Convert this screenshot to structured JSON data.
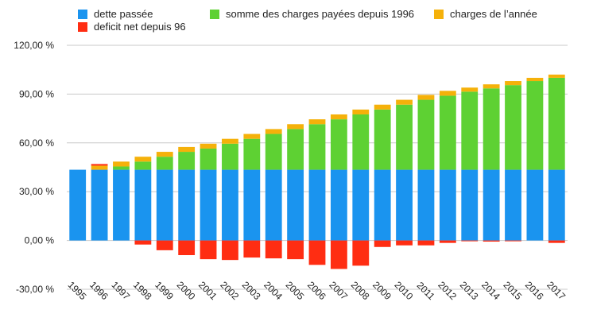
{
  "legend": [
    {
      "key": "dette",
      "label": "dette passée",
      "color": "#1a94ef"
    },
    {
      "key": "somme",
      "label": "somme des charges  payées depuis 1996",
      "color": "#5ed133"
    },
    {
      "key": "charges",
      "label": "charges de l’année",
      "color": "#f5b10a"
    },
    {
      "key": "deficit",
      "label": "deficit net depuis 96",
      "color": "#ff2d12"
    }
  ],
  "chart_data": {
    "type": "bar",
    "stacked": true,
    "categories": [
      "1995",
      "1996",
      "1997",
      "1998",
      "1999",
      "2000",
      "2001",
      "2002",
      "2003",
      "2004",
      "2005",
      "2006",
      "2007",
      "2008",
      "2009",
      "2010",
      "2011",
      "2012",
      "2013",
      "2014",
      "2015",
      "2016",
      "2017"
    ],
    "series": [
      {
        "name": "dette passée",
        "values": [
          43.5,
          43.5,
          43.5,
          43.5,
          43.5,
          43.5,
          43.5,
          43.5,
          43.5,
          43.5,
          43.5,
          43.5,
          43.5,
          43.5,
          43.5,
          43.5,
          43.5,
          43.5,
          43.5,
          43.5,
          43.5,
          43.5,
          43.5
        ]
      },
      {
        "name": "somme des charges  payées depuis 1996",
        "values": [
          0,
          0,
          2,
          5,
          8,
          11,
          13,
          16,
          19,
          22,
          25,
          28,
          31,
          34,
          37,
          40,
          43,
          45.5,
          48,
          50,
          52,
          54.5,
          56.5
        ]
      },
      {
        "name": "charges de l’année",
        "values": [
          0,
          2.5,
          3,
          3,
          3,
          3,
          3,
          3,
          3,
          3,
          3,
          3,
          3,
          3,
          3,
          3,
          3,
          3,
          2.5,
          2.5,
          2.5,
          2,
          2
        ]
      },
      {
        "name": "deficit net depuis 96",
        "values": [
          0,
          1,
          0,
          -2.5,
          -6,
          -9,
          -11.5,
          -12,
          -10.5,
          -11,
          -11.5,
          -15,
          -17.5,
          -15.5,
          -4,
          -3,
          -3,
          -1.5,
          -0.5,
          -0.7,
          -0.5,
          0,
          -1.5
        ]
      }
    ],
    "yticks": [
      -30,
      0,
      30,
      60,
      90,
      120
    ],
    "ytick_labels": [
      "-30,00 %",
      "0,00 %",
      "30,00 %",
      "60,00 %",
      "90,00 %",
      "120,00 %"
    ],
    "ylim": [
      -30,
      120
    ],
    "grid": true,
    "legend_position": "top"
  }
}
